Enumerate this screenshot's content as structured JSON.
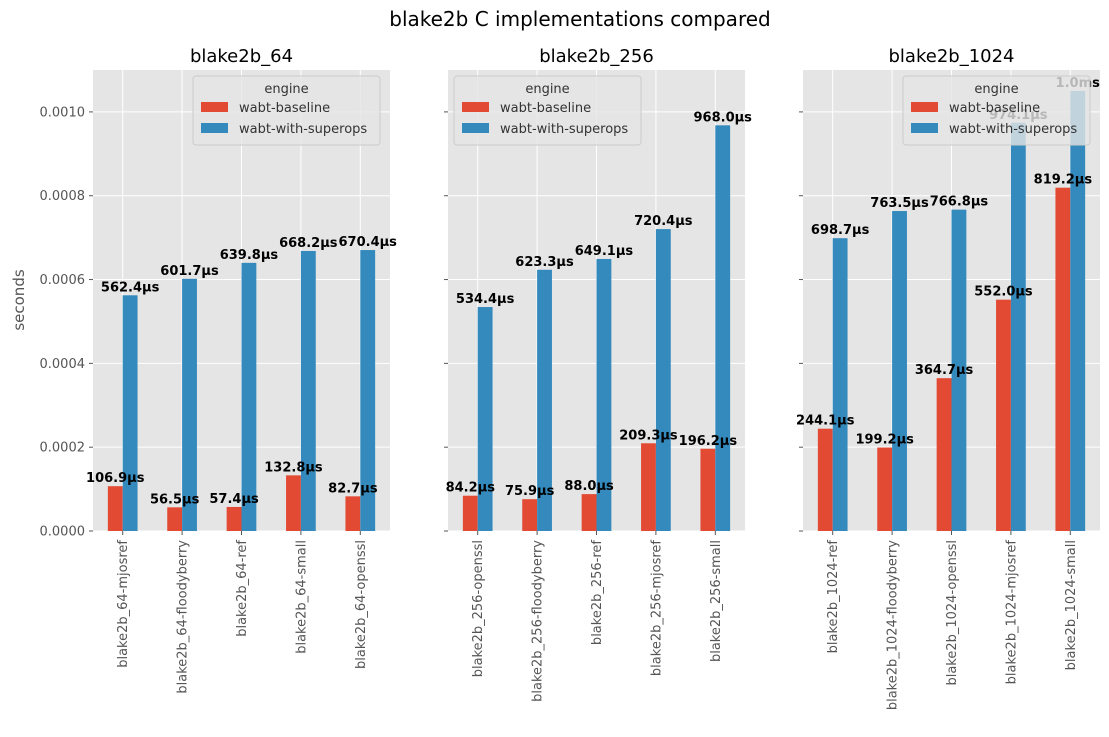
{
  "suptitle": "blake2b C implementations compared",
  "ylabel": "seconds",
  "legend": {
    "title": "engine",
    "entries": [
      "wabt-baseline",
      "wabt-with-superops"
    ]
  },
  "colors": {
    "baseline": "#E24A33",
    "superops": "#348ABD",
    "axes_bg": "#E5E5E5",
    "grid": "#FFFFFF"
  },
  "y_ticks": [
    "0.0000",
    "0.0002",
    "0.0004",
    "0.0006",
    "0.0008",
    "0.0010"
  ],
  "chart_data": [
    {
      "type": "bar",
      "title": "blake2b_64",
      "categories": [
        "blake2b_64-mjosref",
        "blake2b_64-floodyberry",
        "blake2b_64-ref",
        "blake2b_64-small",
        "blake2b_64-openssl"
      ],
      "ylim": [
        0,
        0.0011
      ],
      "series": [
        {
          "name": "wabt-baseline",
          "values": [
            0.0001069,
            5.65e-05,
            5.74e-05,
            0.0001328,
            8.27e-05
          ],
          "labels": [
            "106.9µs",
            "56.5µs",
            "57.4µs",
            "132.8µs",
            "82.7µs"
          ]
        },
        {
          "name": "wabt-with-superops",
          "values": [
            0.0005624,
            0.0006017,
            0.0006398,
            0.0006682,
            0.0006704
          ],
          "labels": [
            "562.4µs",
            "601.7µs",
            "639.8µs",
            "668.2µs",
            "670.4µs"
          ]
        }
      ]
    },
    {
      "type": "bar",
      "title": "blake2b_256",
      "categories": [
        "blake2b_256-openssl",
        "blake2b_256-floodyberry",
        "blake2b_256-ref",
        "blake2b_256-mjosref",
        "blake2b_256-small"
      ],
      "ylim": [
        0,
        0.0011
      ],
      "series": [
        {
          "name": "wabt-baseline",
          "values": [
            8.42e-05,
            7.59e-05,
            8.8e-05,
            0.0002093,
            0.0001962
          ],
          "labels": [
            "84.2µs",
            "75.9µs",
            "88.0µs",
            "209.3µs",
            "196.2µs"
          ]
        },
        {
          "name": "wabt-with-superops",
          "values": [
            0.0005344,
            0.0006233,
            0.0006491,
            0.0007204,
            0.000968
          ],
          "labels": [
            "534.4µs",
            "623.3µs",
            "649.1µs",
            "720.4µs",
            "968.0µs"
          ]
        }
      ]
    },
    {
      "type": "bar",
      "title": "blake2b_1024",
      "categories": [
        "blake2b_1024-ref",
        "blake2b_1024-floodyberry",
        "blake2b_1024-openssl",
        "blake2b_1024-mjosref",
        "blake2b_1024-small"
      ],
      "ylim": [
        0,
        0.0011
      ],
      "series": [
        {
          "name": "wabt-baseline",
          "values": [
            0.0002441,
            0.0001992,
            0.0003647,
            0.000552,
            0.0008192
          ],
          "labels": [
            "244.1µs",
            "199.2µs",
            "364.7µs",
            "552.0µs",
            "819.2µs"
          ]
        },
        {
          "name": "wabt-with-superops",
          "values": [
            0.0006987,
            0.0007635,
            0.0007668,
            0.0009741,
            0.00105
          ],
          "labels": [
            "698.7µs",
            "763.5µs",
            "766.8µs",
            "974.1µs",
            "1.0ms"
          ]
        }
      ]
    }
  ]
}
